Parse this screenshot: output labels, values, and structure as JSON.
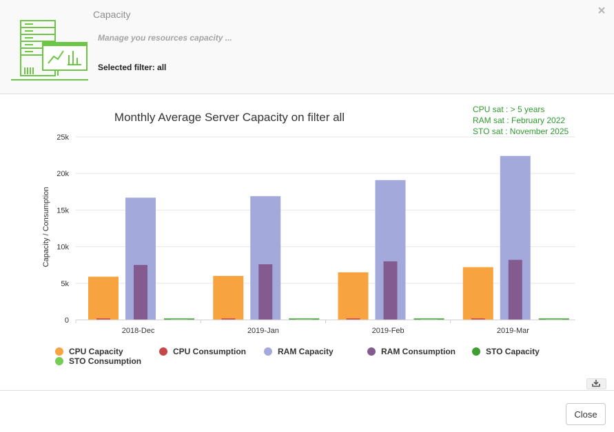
{
  "header": {
    "title": "Capacity",
    "subtitle": "Manage you resources capacity ...",
    "filter_text": "Selected filter: all",
    "icon": "server-monitor-icon",
    "accent": "#6cc644"
  },
  "saturation": {
    "cpu": "CPU sat : > 5 years",
    "ram": "RAM sat : February 2022",
    "sto": "STO sat : November 2025",
    "color": "#2f9a2f"
  },
  "footer": {
    "close_label": "Close"
  },
  "chart_data": {
    "type": "bar",
    "title": "Monthly Average Server Capacity on filter all",
    "xlabel": "",
    "ylabel": "Capacity / Consumption",
    "ylim": [
      0,
      25000
    ],
    "yticks": [
      0,
      5000,
      10000,
      15000,
      20000,
      25000
    ],
    "ytick_labels": [
      "0",
      "5k",
      "10k",
      "15k",
      "20k",
      "25k"
    ],
    "categories": [
      "2018-Dec",
      "2019-Jan",
      "2019-Feb",
      "2019-Mar"
    ],
    "grid": true,
    "legend_position": "bottom",
    "series": [
      {
        "name": "CPU Capacity",
        "color": "#f7a440",
        "values": [
          5900,
          6000,
          6500,
          7200
        ]
      },
      {
        "name": "CPU Consumption",
        "color": "#c8474b",
        "values": [
          200,
          200,
          200,
          200
        ]
      },
      {
        "name": "RAM Capacity",
        "color": "#a4a9dc",
        "values": [
          16700,
          16900,
          19100,
          22400
        ]
      },
      {
        "name": "RAM Consumption",
        "color": "#845b8f",
        "values": [
          7500,
          7600,
          8000,
          8200
        ]
      },
      {
        "name": "STO Capacity",
        "color": "#3f9d34",
        "values": [
          200,
          200,
          200,
          200
        ]
      },
      {
        "name": "STO Consumption",
        "color": "#77cc55",
        "values": [
          100,
          100,
          100,
          100
        ]
      }
    ]
  }
}
